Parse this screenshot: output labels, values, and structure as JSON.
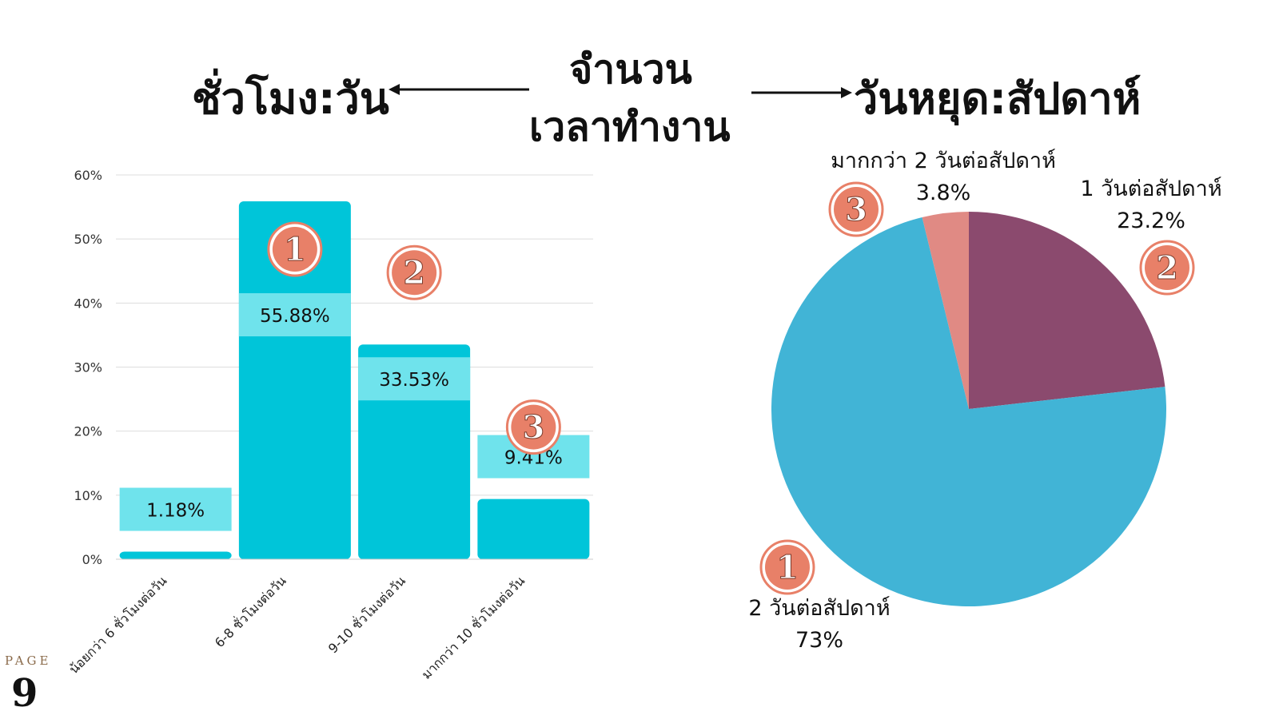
{
  "header": {
    "left_title": "ชั่วโมง:วัน",
    "center_line1": "จำนวน",
    "center_line2": "เวลาทำงาน",
    "right_title": "วันหยุด:สัปดาห์"
  },
  "footer": {
    "page_label": "PAGE",
    "page_number": "9"
  },
  "colors": {
    "bar": "#00c5d9",
    "bar_label_box": "#6fe3ec",
    "badge": "#e88068",
    "pie_two_days": "#41b4d6",
    "pie_one_day": "#8b4a6e",
    "pie_more_than_two": "#e08a84"
  },
  "chart_data": [
    {
      "type": "bar",
      "categories": [
        "น้อยกว่า 6 ชั่วโมงต่อวัน",
        "6-8 ชั่วโมงต่อวัน",
        "9-10 ชั่วโมงต่อวัน",
        "มากกว่า 10 ชั่วโมงต่อวัน"
      ],
      "values": [
        1.18,
        55.88,
        33.53,
        9.41
      ],
      "data_labels": [
        "1.18%",
        "55.88%",
        "33.53%",
        "9.41%"
      ],
      "ranks": [
        "",
        "1",
        "2",
        "3"
      ],
      "yticks": [
        "0%",
        "10%",
        "20%",
        "30%",
        "40%",
        "50%",
        "60%"
      ],
      "ylim": [
        0,
        60
      ],
      "grid": true
    },
    {
      "type": "pie",
      "labels": [
        "1 วันต่อสัปดาห์",
        "2 วันต่อสัปดาห์",
        "มากกว่า 2 วันต่อสัปดาห์"
      ],
      "values": [
        23.2,
        73,
        3.8
      ],
      "value_labels": [
        "23.2%",
        "73%",
        "3.8%"
      ],
      "ranks": [
        "2",
        "1",
        "3"
      ]
    }
  ]
}
